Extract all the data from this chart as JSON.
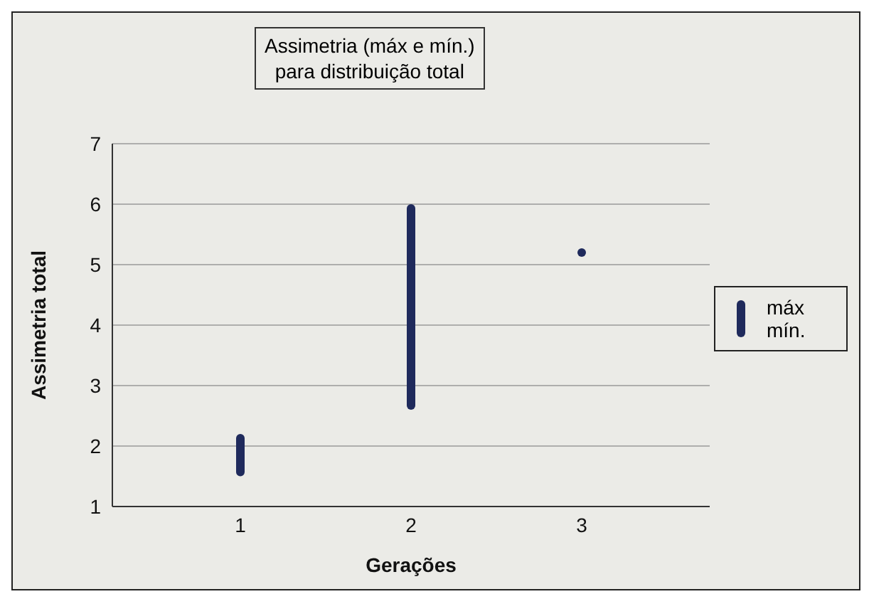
{
  "chart_data": {
    "type": "bar",
    "title": "Assimetria (máx e mín.)\npara distribuição total",
    "xlabel": "Gerações",
    "ylabel": "Assimetria total",
    "categories": [
      "1",
      "2",
      "3"
    ],
    "series": [
      {
        "name": "máx mín.",
        "color": "#1f2a5c",
        "base": [
          1.5,
          2.6,
          null
        ],
        "values": [
          0.7,
          3.4,
          null
        ]
      },
      {
        "type": "scatter",
        "color": "#1f2a5c",
        "x": [
          "3"
        ],
        "values": [
          5.2
        ],
        "marker": "circle"
      }
    ],
    "ylim": [
      1,
      7
    ],
    "yticks": [
      1,
      2,
      3,
      4,
      5,
      6,
      7
    ],
    "grid": "y",
    "legend": "right"
  }
}
